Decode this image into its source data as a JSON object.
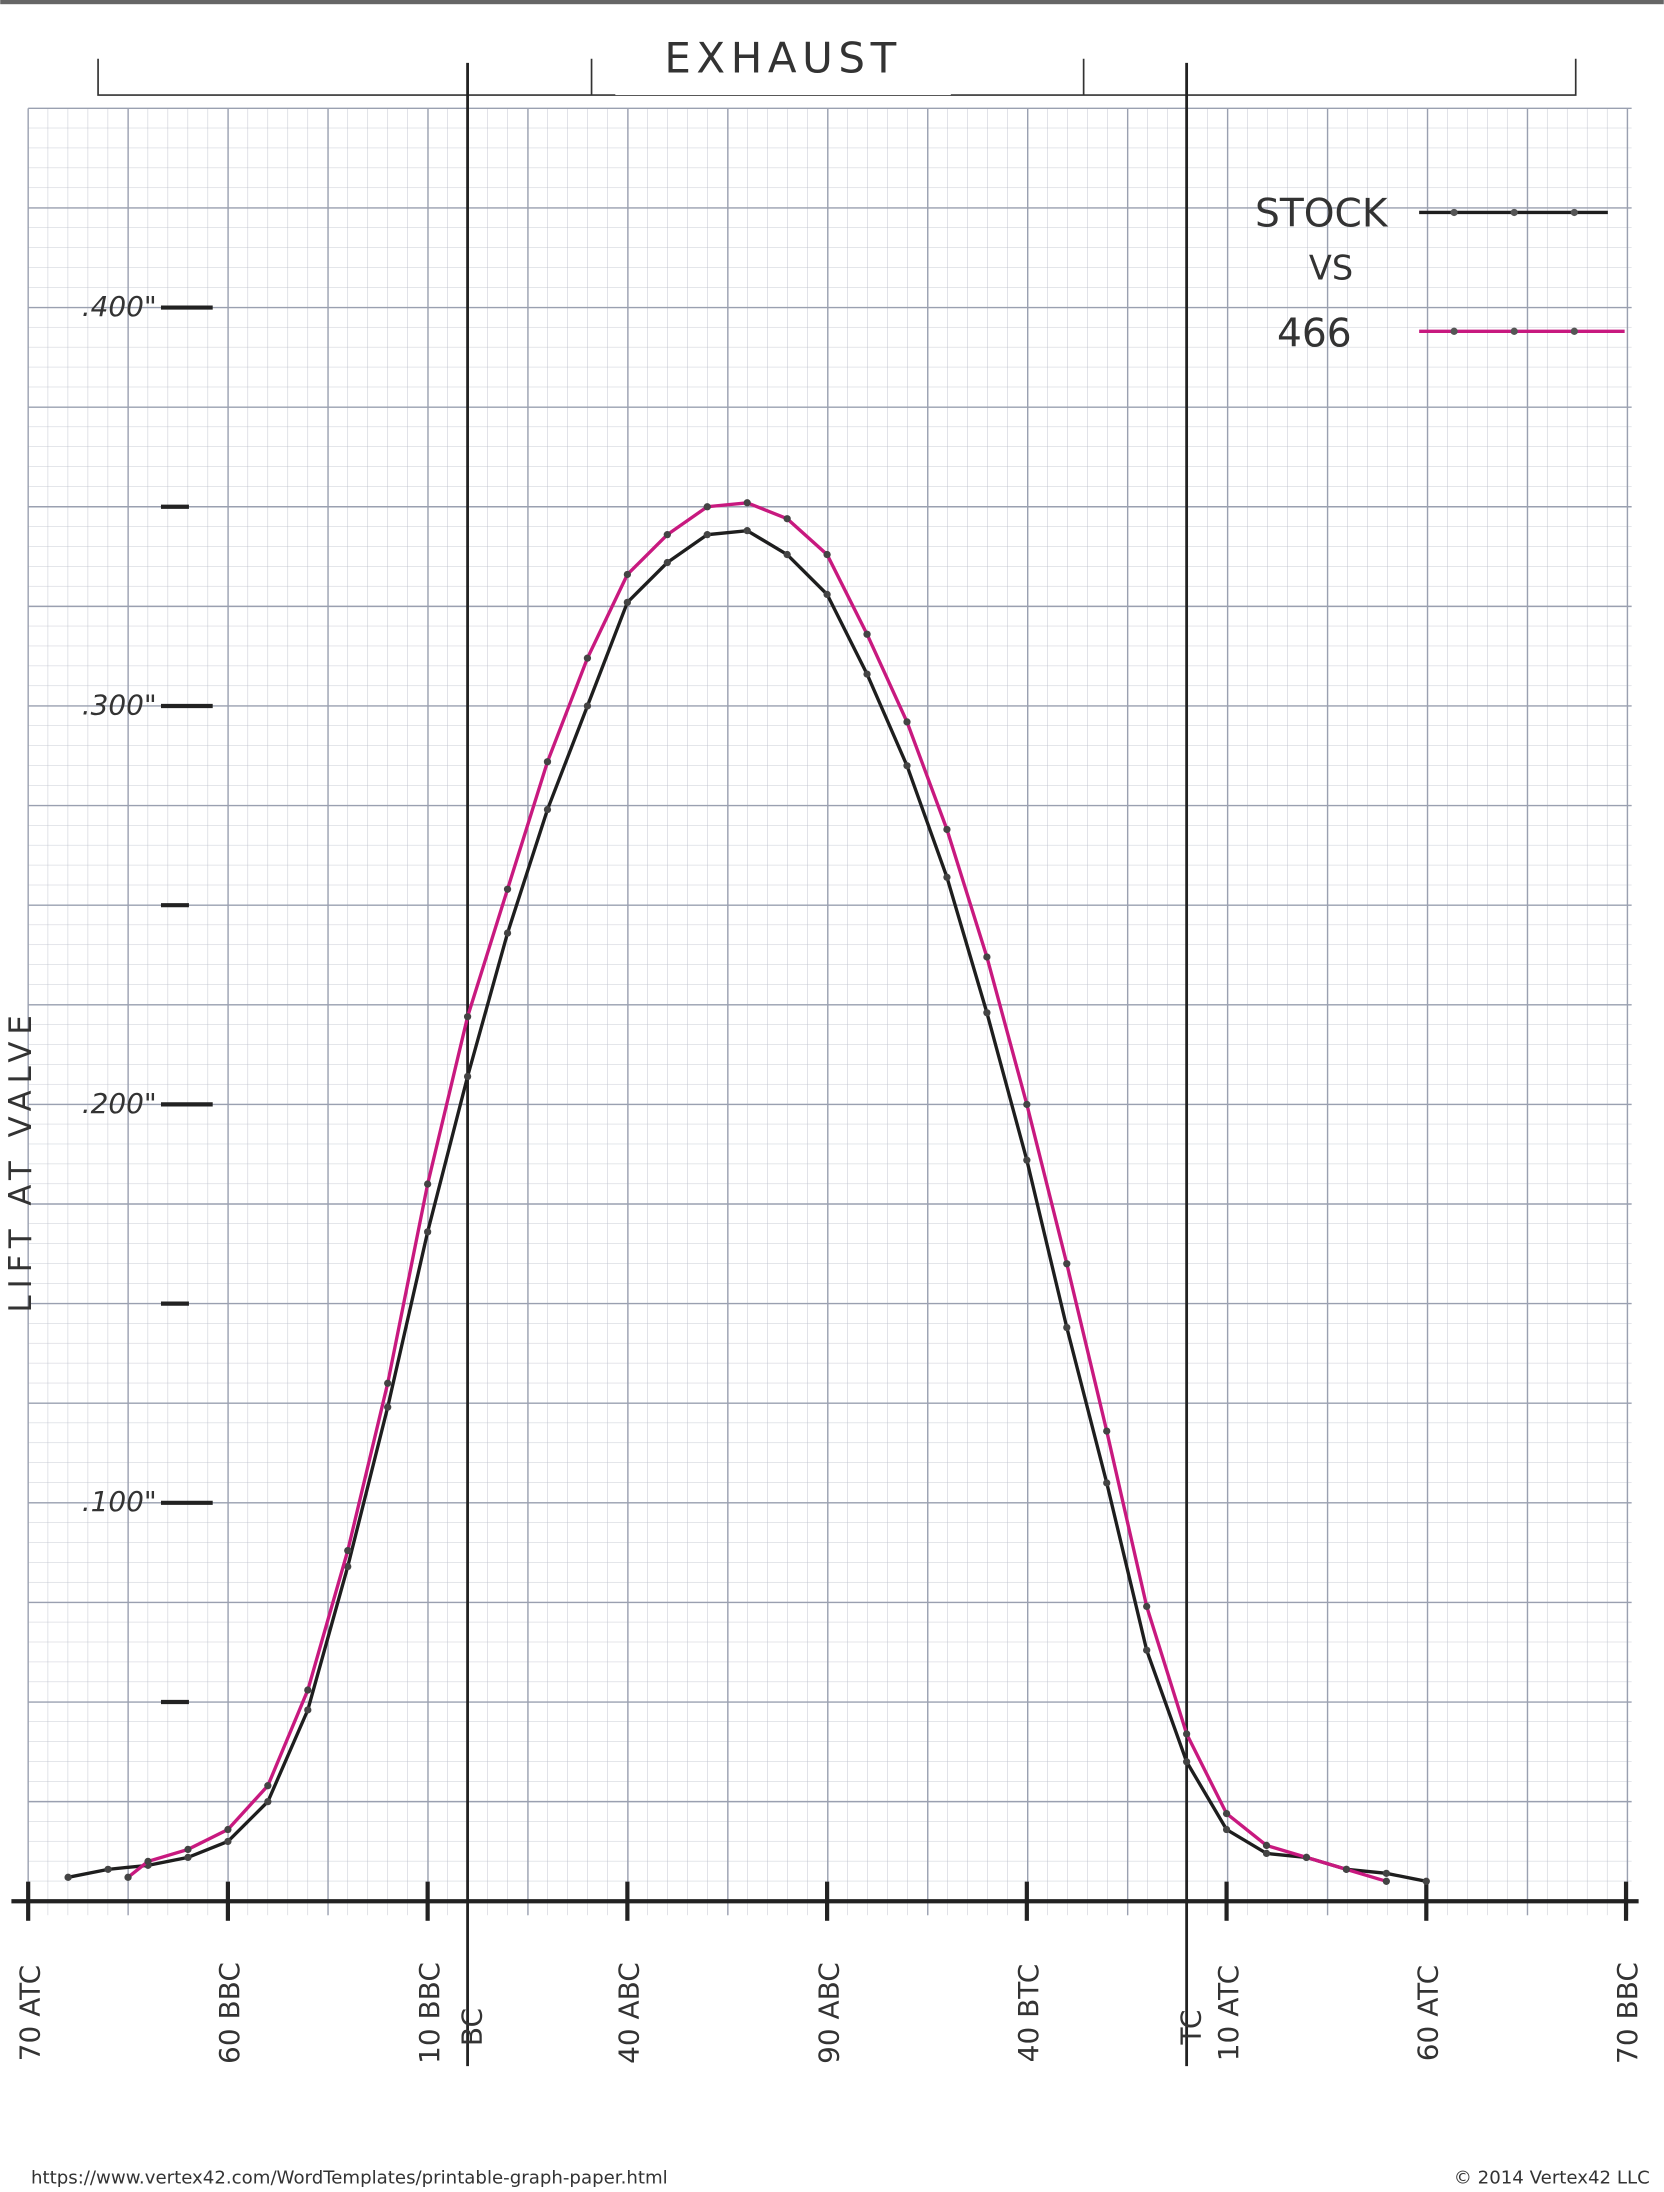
{
  "chart_data": {
    "type": "line",
    "title": "EXHAUST",
    "ylabel": "LIFT AT VALVE",
    "legend_joiner": "VS",
    "footer_left": "https://www.vertex42.com/WordTemplates/printable-graph-paper.html",
    "footer_right": "© 2014 Vertex42 LLC",
    "xlim": [
      0,
      400
    ],
    "xticks": [
      {
        "value": 0,
        "label": "70 ATC"
      },
      {
        "value": 50,
        "label": "60 BBC"
      },
      {
        "value": 100,
        "label": "10 BBC"
      },
      {
        "value": 150,
        "label": "40 ABC"
      },
      {
        "value": 200,
        "label": "90 ABC"
      },
      {
        "value": 250,
        "label": "40 BTC"
      },
      {
        "value": 300,
        "label": "10 ATC"
      },
      {
        "value": 350,
        "label": "60 ATC"
      },
      {
        "value": 400,
        "label": "70 BBC"
      }
    ],
    "vlines": [
      {
        "x": 110,
        "label": "BC"
      },
      {
        "x": 290,
        "label": "TC"
      }
    ],
    "ylim": [
      0,
      0.45
    ],
    "yticks": [
      {
        "value": 0.1,
        "label": ".100\""
      },
      {
        "value": 0.2,
        "label": ".200\""
      },
      {
        "value": 0.3,
        "label": ".300\""
      },
      {
        "value": 0.4,
        "label": ".400\""
      }
    ],
    "yminor_ticks": [
      0.05,
      0.15,
      0.25,
      0.35
    ],
    "grid": true,
    "series": [
      {
        "name": "STOCK",
        "color": "#1e1e1e",
        "x": [
          10,
          20,
          30,
          40,
          50,
          60,
          70,
          80,
          90,
          100,
          110,
          120,
          130,
          140,
          150,
          160,
          170,
          180,
          190,
          200,
          210,
          220,
          230,
          240,
          250,
          260,
          270,
          280,
          290,
          300,
          310,
          320,
          330,
          340,
          350
        ],
        "values": [
          0.006,
          0.008,
          0.009,
          0.011,
          0.015,
          0.025,
          0.048,
          0.084,
          0.124,
          0.168,
          0.207,
          0.243,
          0.274,
          0.3,
          0.326,
          0.336,
          0.343,
          0.344,
          0.338,
          0.328,
          0.308,
          0.285,
          0.257,
          0.223,
          0.186,
          0.144,
          0.105,
          0.063,
          0.035,
          0.018,
          0.012,
          0.011,
          0.008,
          0.007,
          0.005
        ]
      },
      {
        "name": "466",
        "color": "#c8197f",
        "x": [
          25,
          30,
          40,
          50,
          60,
          70,
          80,
          90,
          100,
          110,
          120,
          130,
          140,
          150,
          160,
          170,
          180,
          190,
          200,
          210,
          220,
          230,
          240,
          250,
          260,
          270,
          280,
          290,
          300,
          310,
          320,
          330,
          340
        ],
        "values": [
          0.006,
          0.01,
          0.013,
          0.018,
          0.029,
          0.053,
          0.088,
          0.13,
          0.18,
          0.222,
          0.254,
          0.286,
          0.312,
          0.333,
          0.343,
          0.35,
          0.351,
          0.347,
          0.338,
          0.318,
          0.296,
          0.269,
          0.237,
          0.2,
          0.16,
          0.118,
          0.074,
          0.042,
          0.022,
          0.014,
          0.011,
          0.008,
          0.005
        ]
      }
    ]
  }
}
